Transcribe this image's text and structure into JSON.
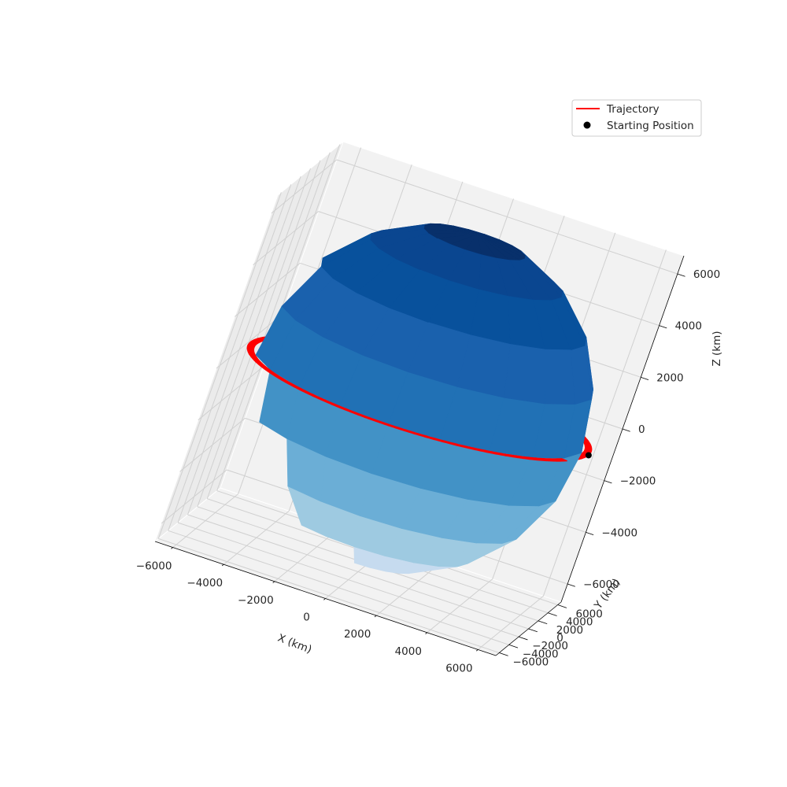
{
  "chart_data": {
    "type": "3d-surface-line",
    "title": "",
    "xlabel": "X (km)",
    "ylabel": "Y (km)",
    "zlabel": "Z (km)",
    "xlim": [
      -6700,
      6700
    ],
    "ylim": [
      -6700,
      6700
    ],
    "zlim": [
      -6700,
      6700
    ],
    "x_ticks": [
      -6000,
      -4000,
      -2000,
      0,
      2000,
      4000,
      6000
    ],
    "y_ticks": [
      -6000,
      -4000,
      -2000,
      0,
      2000,
      4000,
      6000
    ],
    "z_ticks": [
      -6000,
      -4000,
      -2000,
      0,
      2000,
      4000,
      6000
    ],
    "x_tick_labels": [
      "−6000",
      "−4000",
      "−2000",
      "0",
      "2000",
      "4000",
      "6000"
    ],
    "y_tick_labels": [
      "−6000",
      "−4000",
      "−2000",
      "0",
      "2000",
      "4000",
      "6000"
    ],
    "z_tick_labels": [
      "−6000",
      "−4000",
      "−2000",
      "0",
      "2000",
      "4000",
      "6000"
    ],
    "grid": true,
    "legend": {
      "location": "upper right",
      "entries": [
        {
          "label": "Trajectory",
          "marker": "line",
          "color": "#ff0000"
        },
        {
          "label": "Starting Position",
          "marker": "dot",
          "color": "#000000"
        }
      ]
    },
    "sphere": {
      "radius_km": 6371,
      "colormap": "Blues",
      "latitude_bands": 10,
      "longitude_segments": 20
    },
    "trajectory": {
      "color": "#ff0000",
      "description": "near-circular equatorial orbit",
      "radius_km": [
        6400,
        6650
      ],
      "z_km": 0
    },
    "starting_position": {
      "x": 6650,
      "y": 0,
      "z": 0,
      "color": "#000000"
    }
  }
}
